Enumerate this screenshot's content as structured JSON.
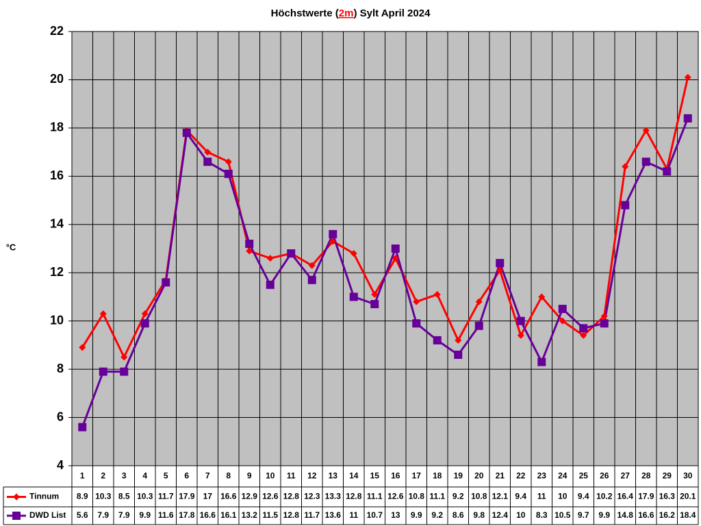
{
  "chart_data": {
    "type": "line",
    "title_parts": [
      "Höchstwerte (",
      "2m",
      ") Sylt April 2024"
    ],
    "y_label": "°C",
    "categories": [
      "1",
      "2",
      "3",
      "4",
      "5",
      "6",
      "7",
      "8",
      "9",
      "10",
      "11",
      "12",
      "13",
      "14",
      "15",
      "16",
      "17",
      "18",
      "19",
      "20",
      "21",
      "22",
      "23",
      "24",
      "25",
      "26",
      "27",
      "28",
      "29",
      "30"
    ],
    "series": [
      {
        "name": "Tinnum",
        "color": "#ff0000",
        "marker": "diamond",
        "values": [
          8.9,
          10.3,
          8.5,
          10.3,
          11.7,
          17.9,
          17,
          16.6,
          12.9,
          12.6,
          12.8,
          12.3,
          13.3,
          12.8,
          11.1,
          12.6,
          10.8,
          11.1,
          9.2,
          10.8,
          12.1,
          9.4,
          11,
          10,
          9.4,
          10.2,
          16.4,
          17.9,
          16.3,
          20.1
        ]
      },
      {
        "name": "DWD List",
        "color": "#660099",
        "marker": "square",
        "values": [
          5.6,
          7.9,
          7.9,
          9.9,
          11.6,
          17.8,
          16.6,
          16.1,
          13.2,
          11.5,
          12.8,
          11.7,
          13.6,
          11,
          10.7,
          13,
          9.9,
          9.2,
          8.6,
          9.8,
          12.4,
          10,
          8.3,
          10.5,
          9.7,
          9.9,
          14.8,
          16.6,
          16.2,
          18.4
        ]
      }
    ],
    "ylim": [
      4,
      22
    ],
    "yticks": [
      4,
      6,
      8,
      10,
      12,
      14,
      16,
      18,
      20,
      22
    ],
    "grid": true,
    "plot_background": "#c0c0c0",
    "data_table": true
  }
}
